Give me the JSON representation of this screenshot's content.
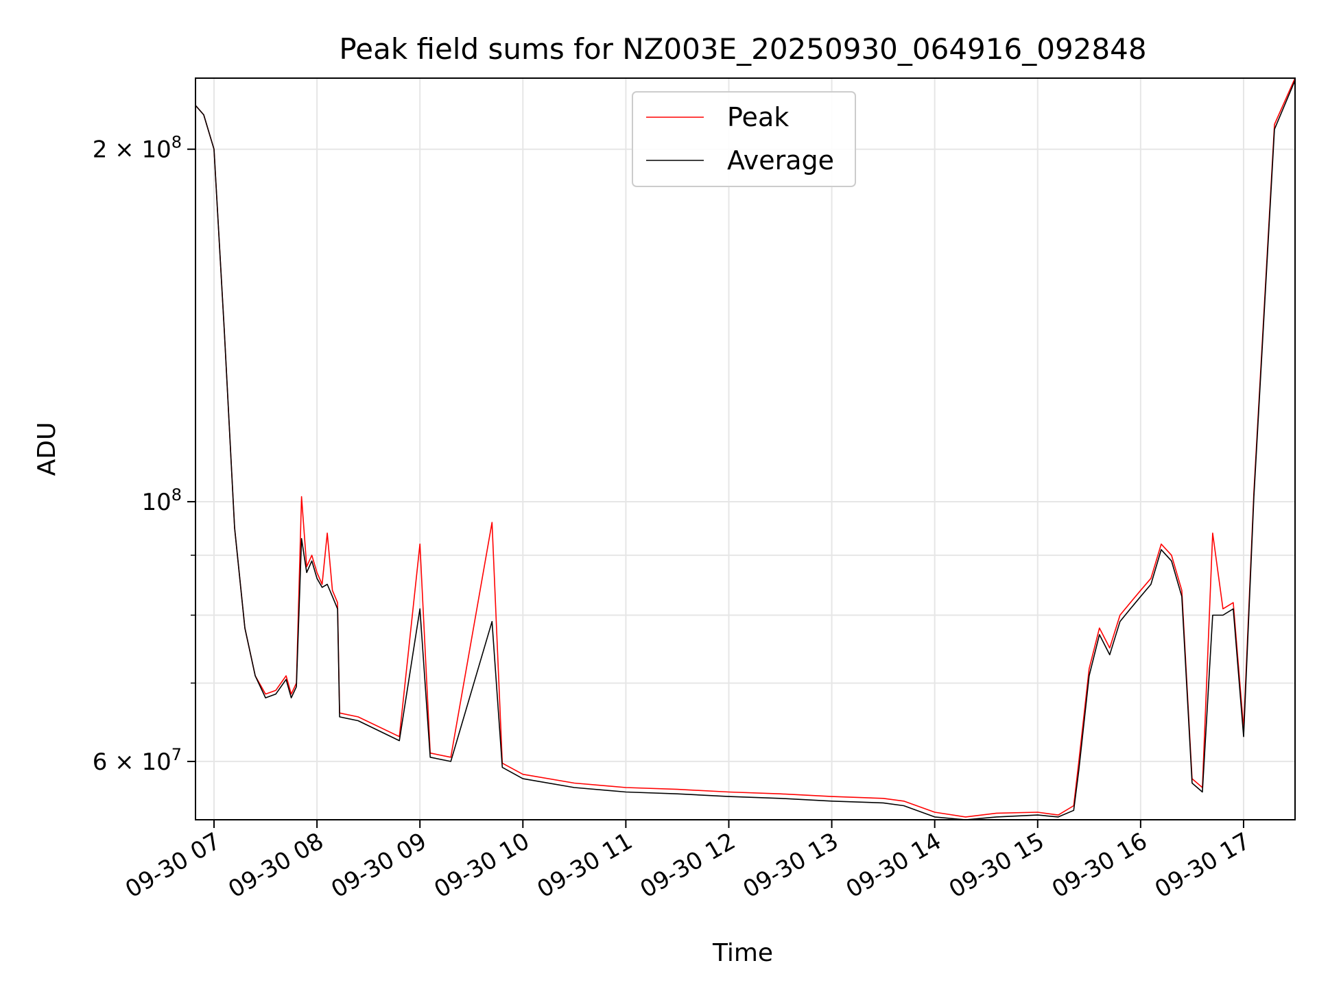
{
  "chart_data": {
    "type": "line",
    "title": "Peak field sums for NZ003E_20250930_064916_092848",
    "xlabel": "Time",
    "ylabel": "ADU",
    "yscale": "log",
    "xlim": [
      6.82,
      17.5
    ],
    "ylim": [
      53500000,
      230000000
    ],
    "grid": true,
    "legend_position": "upper-center",
    "x_tick_values": [
      7,
      8,
      9,
      10,
      11,
      12,
      13,
      14,
      15,
      16,
      17
    ],
    "x_tick_labels": [
      "09-30 07",
      "09-30 08",
      "09-30 09",
      "09-30 10",
      "09-30 11",
      "09-30 12",
      "09-30 13",
      "09-30 14",
      "09-30 15",
      "09-30 16",
      "09-30 17"
    ],
    "y_major_ticks": [
      {
        "value": 60000000,
        "base": "6 × 10",
        "exp": "7"
      },
      {
        "value": 100000000,
        "base": "10",
        "exp": "8"
      },
      {
        "value": 200000000,
        "base": "2 × 10",
        "exp": "8"
      }
    ],
    "y_minor_ticks": [
      70000000,
      80000000,
      90000000
    ],
    "series": [
      {
        "name": "Peak",
        "color": "#ff0000",
        "x": [
          6.82,
          6.9,
          7.0,
          7.1,
          7.2,
          7.3,
          7.4,
          7.5,
          7.6,
          7.7,
          7.75,
          7.8,
          7.85,
          7.9,
          7.95,
          8.0,
          8.05,
          8.1,
          8.15,
          8.2,
          8.22,
          8.4,
          8.8,
          9.0,
          9.1,
          9.3,
          9.7,
          9.8,
          10.0,
          10.5,
          11.0,
          11.5,
          12.0,
          12.5,
          13.0,
          13.5,
          13.7,
          14.0,
          14.3,
          14.6,
          15.0,
          15.2,
          15.35,
          15.4,
          15.5,
          15.6,
          15.7,
          15.8,
          15.9,
          16.0,
          16.1,
          16.2,
          16.3,
          16.4,
          16.5,
          16.6,
          16.7,
          16.8,
          16.9,
          17.0,
          17.1,
          17.3,
          17.5
        ],
        "values": [
          218000000,
          214000000,
          200000000,
          140000000,
          95000000,
          78000000,
          71000000,
          68500000,
          69000000,
          71000000,
          68500000,
          70000000,
          101000000,
          88000000,
          90000000,
          87000000,
          85000000,
          94000000,
          84000000,
          82000000,
          66000000,
          65500000,
          63000000,
          92000000,
          61000000,
          60500000,
          96000000,
          59800000,
          58500000,
          57500000,
          57000000,
          56800000,
          56500000,
          56300000,
          56000000,
          55800000,
          55500000,
          54300000,
          53800000,
          54200000,
          54300000,
          54000000,
          55000000,
          60000000,
          72000000,
          78000000,
          75000000,
          80000000,
          82000000,
          84000000,
          86000000,
          92000000,
          90000000,
          84000000,
          58000000,
          57000000,
          94000000,
          81000000,
          82000000,
          64000000,
          102000000,
          210000000,
          230000000
        ]
      },
      {
        "name": "Average",
        "color": "#000000",
        "x": [
          6.82,
          6.9,
          7.0,
          7.1,
          7.2,
          7.3,
          7.4,
          7.5,
          7.6,
          7.7,
          7.75,
          7.8,
          7.85,
          7.9,
          7.95,
          8.0,
          8.05,
          8.1,
          8.15,
          8.2,
          8.22,
          8.4,
          8.8,
          9.0,
          9.1,
          9.3,
          9.7,
          9.8,
          10.0,
          10.5,
          11.0,
          11.5,
          12.0,
          12.5,
          13.0,
          13.5,
          13.7,
          14.0,
          14.3,
          14.6,
          15.0,
          15.2,
          15.35,
          15.4,
          15.5,
          15.6,
          15.7,
          15.8,
          15.9,
          16.0,
          16.1,
          16.2,
          16.3,
          16.4,
          16.5,
          16.6,
          16.7,
          16.8,
          16.9,
          17.0,
          17.1,
          17.3,
          17.5
        ],
        "values": [
          218000000,
          214000000,
          200000000,
          140000000,
          95000000,
          78000000,
          71000000,
          68000000,
          68500000,
          70500000,
          68000000,
          69500000,
          93000000,
          87000000,
          89000000,
          86000000,
          84500000,
          85000000,
          83000000,
          81000000,
          65500000,
          65000000,
          62500000,
          81000000,
          60500000,
          60000000,
          79000000,
          59300000,
          58000000,
          57000000,
          56500000,
          56300000,
          56000000,
          55800000,
          55500000,
          55300000,
          55000000,
          53800000,
          53500000,
          53800000,
          54000000,
          53800000,
          54500000,
          59000000,
          71000000,
          77000000,
          74000000,
          79000000,
          81000000,
          83000000,
          85000000,
          91000000,
          89000000,
          83000000,
          57500000,
          56500000,
          80000000,
          80000000,
          81000000,
          63000000,
          101000000,
          208000000,
          229000000
        ]
      }
    ]
  }
}
